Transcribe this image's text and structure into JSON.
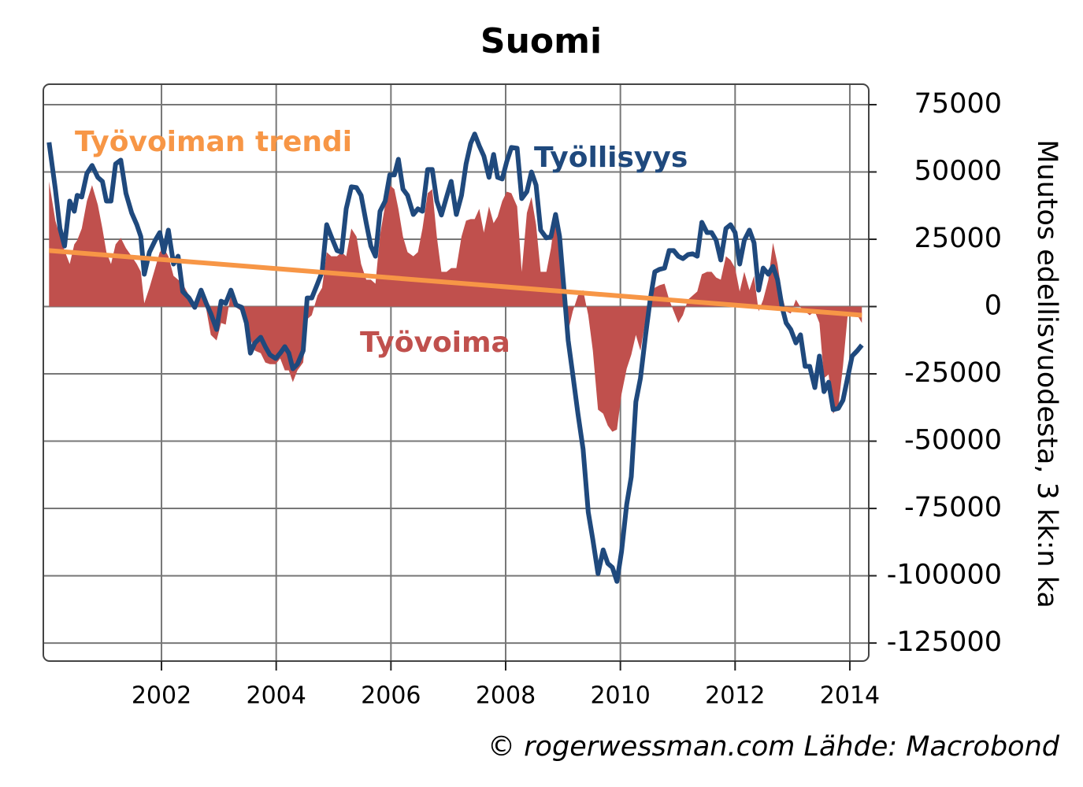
{
  "chart_data": {
    "type": "line",
    "title": "Suomi",
    "y_label": "Muutos edellisvuodesta, 3 kk:n ka",
    "source": "© rogerwessman.com Lähde: Macrobond",
    "xlim": [
      1999.94,
      2014.33
    ],
    "xticks": [
      2002,
      2004,
      2006,
      2008,
      2010,
      2012,
      2014
    ],
    "ylim": [
      -131700,
      82600
    ],
    "yticks": [
      75000,
      50000,
      25000,
      0,
      -25000,
      -50000,
      -75000,
      -100000,
      -125000
    ],
    "grid": true,
    "y_axis_side": "right",
    "x": [
      2000.04,
      2000.15,
      2000.23,
      2000.31,
      2000.4,
      2000.48,
      2000.53,
      2000.61,
      2000.7,
      2000.79,
      2000.89,
      2000.97,
      2001.04,
      2001.12,
      2001.2,
      2001.29,
      2001.38,
      2001.48,
      2001.57,
      2001.64,
      2001.7,
      2001.79,
      2001.89,
      2001.97,
      2002.04,
      2002.12,
      2002.21,
      2002.29,
      2002.37,
      2002.48,
      2002.58,
      2002.69,
      2002.78,
      2002.86,
      2002.96,
      2003.04,
      2003.12,
      2003.21,
      2003.3,
      2003.4,
      2003.48,
      2003.55,
      2003.63,
      2003.73,
      2003.81,
      2003.89,
      2003.99,
      2004.07,
      2004.15,
      2004.22,
      2004.29,
      2004.37,
      2004.47,
      2004.54,
      2004.62,
      2004.72,
      2004.8,
      2004.88,
      2004.96,
      2005.06,
      2005.14,
      2005.22,
      2005.31,
      2005.4,
      2005.48,
      2005.57,
      2005.65,
      2005.73,
      2005.81,
      2005.9,
      2005.98,
      2006.06,
      2006.13,
      2006.21,
      2006.29,
      2006.39,
      2006.47,
      2006.55,
      2006.64,
      2006.72,
      2006.8,
      2006.88,
      2006.97,
      2007.05,
      2007.14,
      2007.23,
      2007.31,
      2007.39,
      2007.46,
      2007.54,
      2007.62,
      2007.71,
      2007.79,
      2007.86,
      2007.94,
      2008.02,
      2008.1,
      2008.2,
      2008.28,
      2008.37,
      2008.45,
      2008.53,
      2008.61,
      2008.71,
      2008.79,
      2008.87,
      2008.94,
      2009.02,
      2009.09,
      2009.17,
      2009.26,
      2009.35,
      2009.44,
      2009.52,
      2009.61,
      2009.7,
      2009.78,
      2009.86,
      2009.94,
      2010.02,
      2010.11,
      2010.19,
      2010.27,
      2010.35,
      2010.44,
      2010.52,
      2010.6,
      2010.68,
      2010.77,
      2010.85,
      2010.93,
      2011.01,
      2011.09,
      2011.18,
      2011.26,
      2011.34,
      2011.42,
      2011.51,
      2011.59,
      2011.67,
      2011.75,
      2011.84,
      2011.92,
      2012.0,
      2012.08,
      2012.16,
      2012.25,
      2012.33,
      2012.41,
      2012.49,
      2012.58,
      2012.66,
      2012.74,
      2012.82,
      2012.89,
      2012.97,
      2013.06,
      2013.14,
      2013.22,
      2013.3,
      2013.39,
      2013.47,
      2013.55,
      2013.63,
      2013.71,
      2013.8,
      2013.88,
      2013.96,
      2014.04,
      2014.13,
      2014.21
    ],
    "series": [
      {
        "name": "Työvoima",
        "type": "area",
        "color": "#c0504d",
        "values": [
          46500,
          31900,
          26000,
          20800,
          15800,
          23100,
          24600,
          29000,
          39200,
          45100,
          37800,
          29000,
          20200,
          15800,
          23100,
          25500,
          21700,
          18700,
          15800,
          12900,
          1200,
          7000,
          14300,
          20200,
          21700,
          18700,
          11400,
          10000,
          8500,
          4100,
          1200,
          4100,
          -900,
          -10500,
          -12600,
          -6100,
          -6700,
          5000,
          -300,
          -1800,
          -6100,
          -12000,
          -16400,
          -17300,
          -20800,
          -21400,
          -21400,
          -19300,
          -23700,
          -23700,
          -28100,
          -23700,
          -20800,
          -4700,
          -3200,
          4100,
          7000,
          20200,
          18700,
          18700,
          20200,
          18700,
          29000,
          26000,
          15800,
          10000,
          10000,
          8500,
          26600,
          37800,
          45100,
          43600,
          36300,
          26000,
          20200,
          18700,
          20200,
          29000,
          42100,
          43600,
          26000,
          12900,
          12900,
          14300,
          14300,
          26000,
          31900,
          32500,
          32500,
          36300,
          27500,
          37200,
          31000,
          33400,
          39200,
          42700,
          42100,
          37200,
          12900,
          34800,
          40700,
          30400,
          12900,
          12900,
          21700,
          34800,
          20200,
          2600,
          -9100,
          -1800,
          4100,
          6100,
          -3200,
          -16400,
          -38300,
          -39800,
          -44200,
          -46500,
          -45700,
          -32500,
          -23100,
          -17900,
          -10500,
          -16400,
          -4700,
          4100,
          7000,
          7900,
          8500,
          2600,
          -1800,
          -6100,
          -3200,
          2600,
          4100,
          5600,
          12000,
          12900,
          12900,
          10800,
          10000,
          18700,
          17300,
          14300,
          5600,
          12900,
          6100,
          11400,
          -1800,
          2600,
          10000,
          23700,
          15800,
          4100,
          -1800,
          -2600,
          2600,
          -300,
          -1800,
          -3200,
          -1800,
          -6100,
          -26600,
          -25200,
          -39800,
          -36900,
          -22200,
          -3800,
          -2600,
          -3200,
          -6100
        ]
      },
      {
        "name": "Työllisyys",
        "type": "line",
        "color": "#1f497d",
        "values": [
          61000,
          43600,
          29000,
          22500,
          39200,
          35400,
          41300,
          40700,
          49500,
          52400,
          48000,
          46500,
          39200,
          39200,
          53000,
          54400,
          42100,
          34800,
          30400,
          26000,
          12000,
          20200,
          24600,
          27500,
          20200,
          28400,
          15800,
          18700,
          5600,
          3200,
          -300,
          6100,
          1200,
          -2600,
          -8500,
          2000,
          1200,
          6100,
          600,
          -300,
          -6100,
          -17300,
          -13500,
          -11400,
          -14900,
          -17900,
          -19300,
          -17300,
          -14900,
          -17300,
          -23100,
          -21400,
          -16400,
          3200,
          3200,
          8500,
          12900,
          30400,
          26000,
          20800,
          20200,
          36300,
          44500,
          44200,
          41300,
          31000,
          22500,
          18700,
          35400,
          39200,
          48900,
          48900,
          54700,
          43600,
          41300,
          34200,
          36300,
          35400,
          50900,
          50900,
          39200,
          34000,
          40700,
          46500,
          34200,
          41300,
          53000,
          60600,
          64100,
          59700,
          55900,
          48000,
          56500,
          48000,
          47400,
          53900,
          59100,
          58800,
          40100,
          42700,
          50000,
          45100,
          28400,
          25500,
          26000,
          34200,
          26000,
          5600,
          -12600,
          -25200,
          -39800,
          -53000,
          -76400,
          -86600,
          -99200,
          -90400,
          -95400,
          -96900,
          -102100,
          -91000,
          -73500,
          -63200,
          -35400,
          -26600,
          -10500,
          2600,
          12900,
          13800,
          14300,
          20800,
          20800,
          18700,
          17800,
          19300,
          19600,
          18700,
          31300,
          27500,
          27500,
          24600,
          17300,
          29000,
          30400,
          27500,
          15800,
          24600,
          28400,
          23700,
          6100,
          14300,
          12000,
          14900,
          10000,
          -300,
          -6100,
          -8500,
          -13500,
          -10500,
          -22200,
          -22200,
          -30100,
          -18400,
          -31600,
          -28100,
          -38300,
          -37800,
          -34800,
          -26600,
          -18400,
          -16400,
          -14300
        ]
      },
      {
        "name": "Työvoiman trendi",
        "type": "line",
        "color": "#f79646",
        "x": [
          2000.04,
          2014.21
        ],
        "values": [
          20800,
          -3200
        ]
      }
    ]
  }
}
